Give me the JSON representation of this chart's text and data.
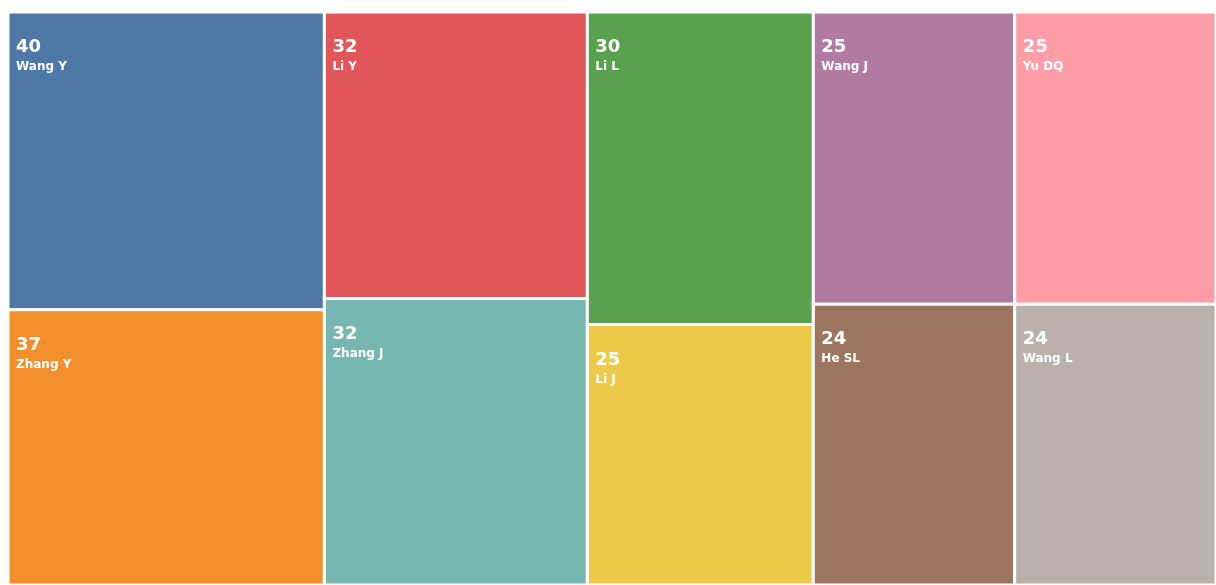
{
  "chart_data": {
    "type": "other",
    "categories": [
      "Wang Y",
      "Zhang Y",
      "Li Y",
      "Zhang J",
      "Li L",
      "Li J",
      "Wang J",
      "Yu DQ",
      "He SL",
      "Wang L"
    ],
    "values": [
      40,
      37,
      32,
      32,
      30,
      25,
      25,
      25,
      24,
      24
    ],
    "colors": [
      "#4e79a7",
      "#f28e2b",
      "#e15759",
      "#76b7b2",
      "#59a14f",
      "#edc948",
      "#b07aa1",
      "#ff9da7",
      "#9c755f",
      "#bab0ac"
    ],
    "data_labels": true
  }
}
